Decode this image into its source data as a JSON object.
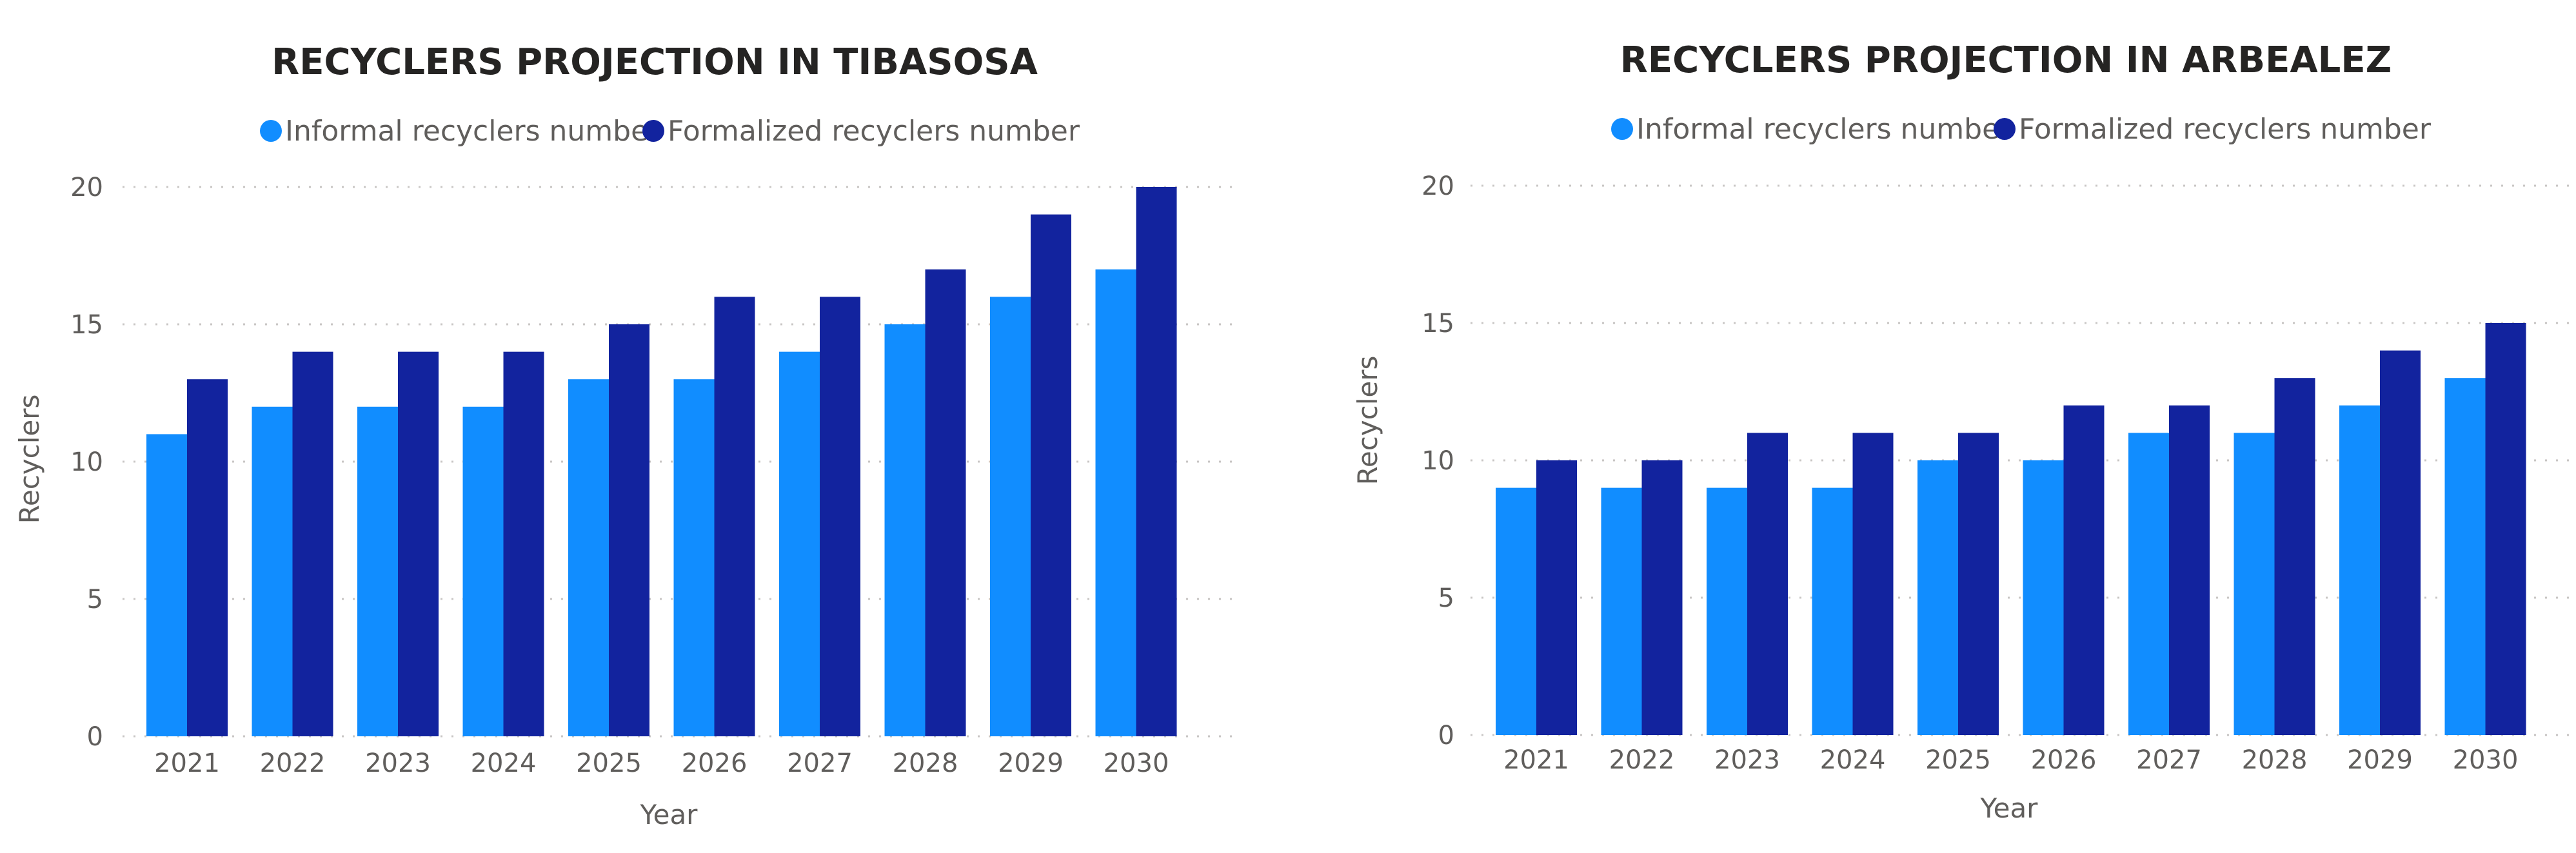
{
  "colors": {
    "informal": "#118dff",
    "formalized": "#12239e",
    "grid": "#c8c6c4",
    "text": "#605e5c",
    "title": "#252423"
  },
  "chart_data": [
    {
      "type": "bar",
      "title": "RECYCLERS PROJECTION IN TIBASOSA",
      "xlabel": "Year",
      "ylabel": "Recyclers",
      "ylim": [
        0,
        20
      ],
      "yticks": [
        "0",
        "5",
        "10",
        "15",
        "20"
      ],
      "grid": true,
      "legend_position": "top-center",
      "categories": [
        "2021",
        "2022",
        "2023",
        "2024",
        "2025",
        "2026",
        "2027",
        "2028",
        "2029",
        "2030"
      ],
      "series": [
        {
          "name": "Informal recyclers number",
          "values": [
            11,
            12,
            12,
            12,
            13,
            13,
            14,
            15,
            16,
            17
          ]
        },
        {
          "name": "Formalized recyclers number",
          "values": [
            13,
            14,
            14,
            14,
            15,
            16,
            16,
            17,
            19,
            20
          ]
        }
      ]
    },
    {
      "type": "bar",
      "title": "RECYCLERS PROJECTION IN ARBEALEZ",
      "xlabel": "Year",
      "ylabel": "Recyclers",
      "ylim": [
        0,
        20
      ],
      "yticks": [
        "0",
        "5",
        "10",
        "15",
        "20"
      ],
      "grid": true,
      "legend_position": "top-center",
      "categories": [
        "2021",
        "2022",
        "2023",
        "2024",
        "2025",
        "2026",
        "2027",
        "2028",
        "2029",
        "2030"
      ],
      "series": [
        {
          "name": "Informal recyclers number",
          "values": [
            9,
            9,
            9,
            9,
            10,
            10,
            11,
            11,
            12,
            13
          ]
        },
        {
          "name": "Formalized recyclers number",
          "values": [
            10,
            10,
            11,
            11,
            11,
            12,
            12,
            13,
            14,
            15
          ]
        }
      ]
    }
  ]
}
